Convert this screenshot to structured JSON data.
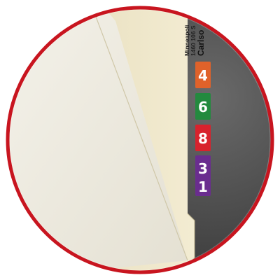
{
  "scene": {
    "description_icon": "file-folder-magnifier",
    "frame_color": "#c8151f",
    "folder_color": "#efe8cf",
    "background_color": "#3a3a3a"
  },
  "label": {
    "line1": "Minneapoli",
    "line2": "1460 106 S",
    "line3": "Carlso"
  },
  "tabs": [
    {
      "text": "4",
      "color": "#e0622a"
    },
    {
      "text": "6",
      "color": "#238a3e"
    },
    {
      "text": "8",
      "color": "#d8222d"
    },
    {
      "text": "3",
      "color": "#6a2d8f"
    },
    {
      "text": "1",
      "color": "#6a2d8f"
    }
  ]
}
